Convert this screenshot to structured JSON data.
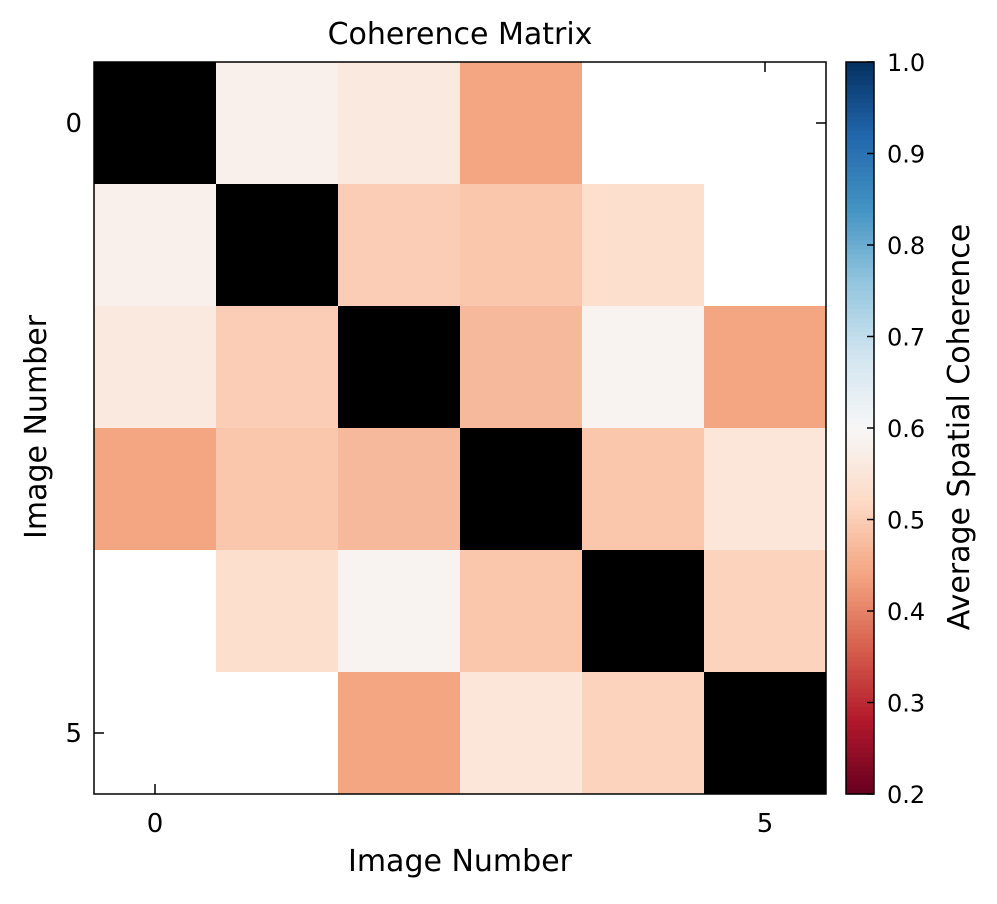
{
  "chart_data": {
    "type": "heatmap",
    "title": "Coherence Matrix",
    "xlabel": "Image Number",
    "ylabel": "Image Number",
    "x_ticks": [
      0,
      5
    ],
    "y_ticks": [
      0,
      5
    ],
    "x_tick_labels": [
      "0",
      "5"
    ],
    "y_tick_labels": [
      "0",
      "5"
    ],
    "rows": 6,
    "cols": 6,
    "matrix": [
      [
        null,
        0.58,
        0.56,
        0.44,
        null,
        null
      ],
      [
        0.58,
        null,
        0.5,
        0.49,
        0.53,
        null
      ],
      [
        0.56,
        0.5,
        null,
        0.47,
        0.59,
        0.44
      ],
      [
        0.44,
        0.49,
        0.47,
        null,
        0.49,
        0.55
      ],
      [
        null,
        0.53,
        0.59,
        0.49,
        null,
        0.51
      ],
      [
        null,
        null,
        0.44,
        0.55,
        0.51,
        null
      ]
    ],
    "diagonal_color": "#000000",
    "missing_color": "#ffffff",
    "colorbar": {
      "label": "Average Spatial Coherence",
      "range": [
        0.2,
        1.0
      ],
      "ticks": [
        0.2,
        0.3,
        0.4,
        0.5,
        0.6,
        0.7,
        0.8,
        0.9,
        1.0
      ],
      "tick_labels": [
        "0.2",
        "0.3",
        "0.4",
        "0.5",
        "0.6",
        "0.7",
        "0.8",
        "0.9",
        "1.0"
      ],
      "colormap": "RdBu",
      "colormap_stops": [
        "#67001f",
        "#b2182b",
        "#d6604d",
        "#f4a582",
        "#fddbc7",
        "#f7f7f7",
        "#d1e5f0",
        "#92c5de",
        "#4393c3",
        "#2166ac",
        "#053061"
      ]
    },
    "grid": false,
    "legend": "none"
  }
}
